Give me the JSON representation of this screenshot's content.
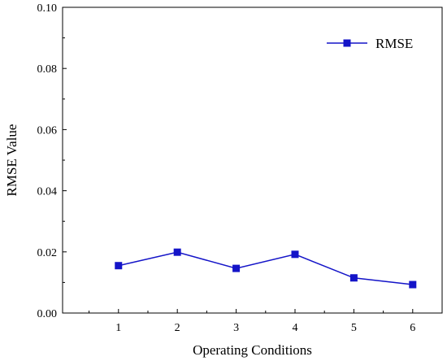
{
  "chart_data": {
    "type": "line",
    "title": "",
    "xlabel": "Operating Conditions",
    "ylabel": "RMSE Value",
    "x": [
      1,
      2,
      3,
      4,
      5,
      6
    ],
    "xlim": [
      0.05,
      6.5
    ],
    "ylim": [
      0,
      0.1
    ],
    "x_ticks": [
      "1",
      "2",
      "3",
      "4",
      "5",
      "6"
    ],
    "y_ticks": [
      "0.00",
      "0.02",
      "0.04",
      "0.06",
      "0.08",
      "0.10"
    ],
    "series": [
      {
        "name": "RMSE",
        "color": "#1414c8",
        "marker": "square",
        "values": [
          0.0155,
          0.0199,
          0.0146,
          0.0192,
          0.0115,
          0.0093
        ]
      }
    ],
    "legend": {
      "position": "top-right"
    },
    "grid": false
  }
}
